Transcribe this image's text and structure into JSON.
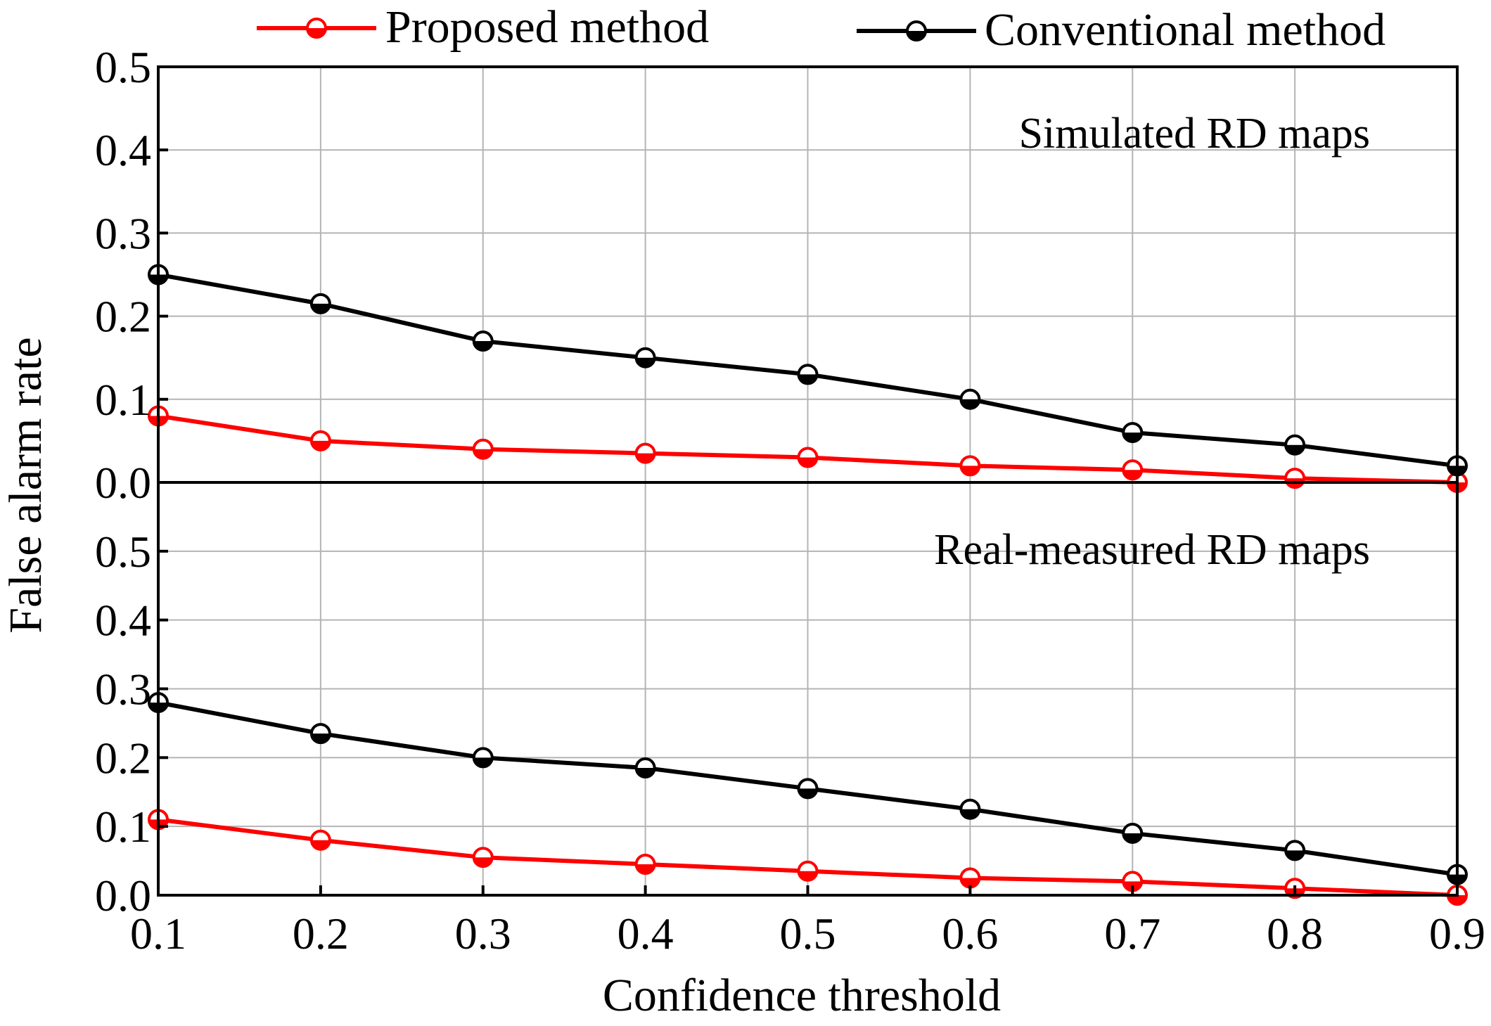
{
  "legend": {
    "proposed_label": "Proposed method",
    "conventional_label": "Conventional method"
  },
  "colors": {
    "proposed": "#ff0000",
    "conventional": "#000000",
    "grid": "#b4b4b4"
  },
  "chart_data": [
    {
      "type": "line",
      "panel": "top",
      "annotation": "Simulated RD maps",
      "x": [
        0.1,
        0.2,
        0.3,
        0.4,
        0.5,
        0.6,
        0.7,
        0.8,
        0.9
      ],
      "series": [
        {
          "name": "Proposed method",
          "values": [
            0.08,
            0.05,
            0.04,
            0.035,
            0.03,
            0.02,
            0.015,
            0.005,
            0.0
          ]
        },
        {
          "name": "Conventional method",
          "values": [
            0.25,
            0.215,
            0.17,
            0.15,
            0.13,
            0.1,
            0.06,
            0.045,
            0.02
          ]
        }
      ],
      "ylim": [
        0,
        0.5
      ],
      "yticks": [
        0.0,
        0.1,
        0.2,
        0.3,
        0.4,
        0.5
      ],
      "ytick_labels": [
        "0.0",
        "0.1",
        "0.2",
        "0.3",
        "0.4",
        "0.5"
      ],
      "grid": true
    },
    {
      "type": "line",
      "panel": "bottom",
      "annotation": "Real-measured RD maps",
      "x": [
        0.1,
        0.2,
        0.3,
        0.4,
        0.5,
        0.6,
        0.7,
        0.8,
        0.9
      ],
      "series": [
        {
          "name": "Proposed method",
          "values": [
            0.11,
            0.08,
            0.055,
            0.045,
            0.035,
            0.025,
            0.02,
            0.01,
            0.0
          ]
        },
        {
          "name": "Conventional method",
          "values": [
            0.28,
            0.235,
            0.2,
            0.185,
            0.155,
            0.125,
            0.09,
            0.065,
            0.03
          ]
        }
      ],
      "ylim": [
        0,
        0.6
      ],
      "yticks": [
        0.0,
        0.1,
        0.2,
        0.3,
        0.4,
        0.5
      ],
      "ytick_labels": [
        "0.0",
        "0.1",
        "0.2",
        "0.3",
        "0.4",
        "0.5"
      ],
      "grid": true
    }
  ],
  "x_axis": {
    "label": "Confidence threshold",
    "xlim": [
      0.1,
      0.9
    ],
    "ticks": [
      0.1,
      0.2,
      0.3,
      0.4,
      0.5,
      0.6,
      0.7,
      0.8,
      0.9
    ],
    "tick_labels": [
      "0.1",
      "0.2",
      "0.3",
      "0.4",
      "0.5",
      "0.6",
      "0.7",
      "0.8",
      "0.9"
    ]
  },
  "y_axis": {
    "label": "False alarm rate"
  }
}
